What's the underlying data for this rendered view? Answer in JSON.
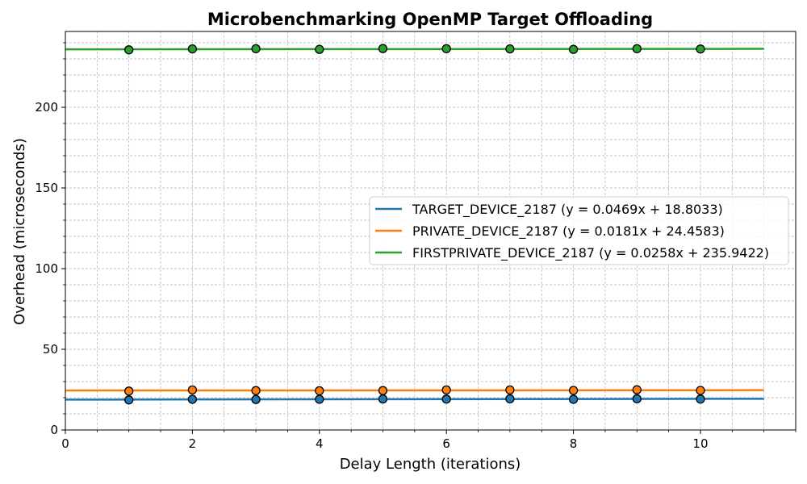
{
  "chart_data": {
    "type": "scatter",
    "title": "Microbenchmarking OpenMP Target Offloading",
    "xlabel": "Delay Length (iterations)",
    "ylabel": "Overhead (microseconds)",
    "xlim": [
      0,
      11.5
    ],
    "ylim": [
      0,
      247
    ],
    "x_ticks": [
      0,
      2,
      4,
      6,
      8,
      10
    ],
    "y_ticks": [
      0,
      50,
      100,
      150,
      200
    ],
    "grid": true,
    "minor_grid": true,
    "legend_position": "center-right",
    "x": [
      1,
      2,
      3,
      4,
      5,
      6,
      7,
      8,
      9,
      10
    ],
    "fit_x_range": [
      0,
      11
    ],
    "series": [
      {
        "name": "TARGET_DEVICE_2187 (y = 0.0469x + 18.8033)",
        "color": "#1f77b4",
        "values": [
          18.6,
          19.0,
          18.9,
          19.0,
          19.2,
          19.1,
          19.3,
          19.0,
          19.3,
          19.1
        ],
        "slope": 0.0469,
        "intercept": 18.8033
      },
      {
        "name": "PRIVATE_DEVICE_2187 (y = 0.0181x + 24.4583)",
        "color": "#ff7f0e",
        "values": [
          24.1,
          24.8,
          24.4,
          24.3,
          24.4,
          24.8,
          24.8,
          24.5,
          24.9,
          24.5
        ],
        "slope": 0.0181,
        "intercept": 24.4583
      },
      {
        "name": "FIRSTPRIVATE_DEVICE_2187 (y = 0.0258x + 235.9422)",
        "color": "#2ca02c",
        "values": [
          235.6,
          236.2,
          236.3,
          235.9,
          236.4,
          236.3,
          236.2,
          235.9,
          236.3,
          236.1
        ],
        "slope": 0.0258,
        "intercept": 235.9422
      }
    ]
  }
}
